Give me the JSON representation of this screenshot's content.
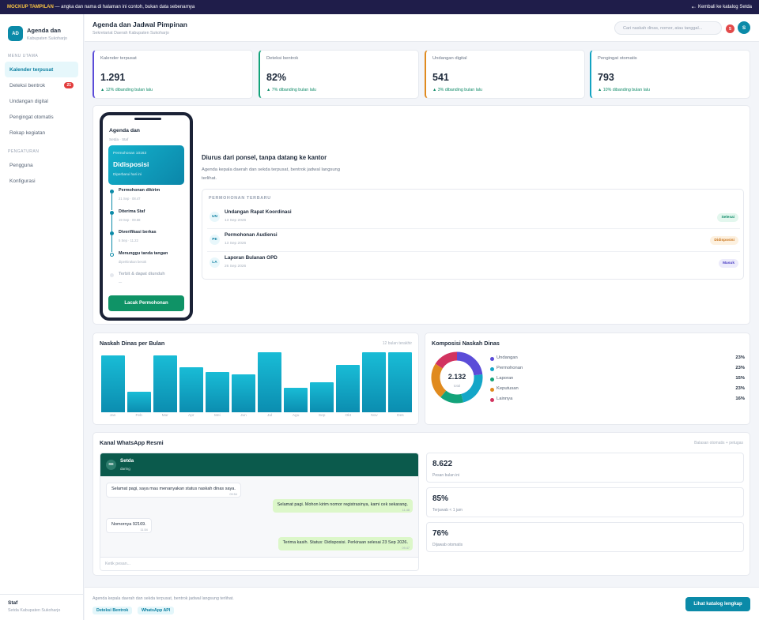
{
  "banner": {
    "tag": "MOCKUP TAMPILAN",
    "text": "— angka dan nama di halaman ini contoh, bukan data sebenarnya",
    "back_label": "Kembali ke katalog Setda",
    "back_icon": "arrow-left-icon"
  },
  "sidebar": {
    "logo": "AD",
    "title": "Agenda dan",
    "subtitle": "Kabupaten Sukoharjo",
    "section_main": "MENU UTAMA",
    "items": [
      {
        "label": "Kalender terpusat",
        "active": true
      },
      {
        "label": "Deteksi bentrok",
        "badge": "21"
      },
      {
        "label": "Undangan digital"
      },
      {
        "label": "Pengingat otomatis"
      },
      {
        "label": "Rekap kegiatan"
      }
    ],
    "section_settings": "PENGATURAN",
    "settings_items": [
      {
        "label": "Pengguna"
      },
      {
        "label": "Konfigurasi"
      }
    ],
    "user_name": "Staf",
    "user_role": "Setda Kabupaten Sukoharjo"
  },
  "header": {
    "title": "Agenda dan Jadwal Pimpinan",
    "subtitle": "Sekretariat Daerah Kabupaten Sukoharjo",
    "search_placeholder": "Cari naskah dinas, nomor, atau tanggal...",
    "notif_count": "5",
    "avatar": "S"
  },
  "stats": [
    {
      "label": "Kalender terpusat",
      "value": "1.291",
      "trend": "▲ 12% dibanding bulan lalu",
      "color": "#5b4cd8"
    },
    {
      "label": "Deteksi bentrok",
      "value": "82%",
      "trend": "▲ 7% dibanding bulan lalu",
      "color": "#13a37a"
    },
    {
      "label": "Undangan digital",
      "value": "541",
      "trend": "▲ 3% dibanding bulan lalu",
      "color": "#e08a1e"
    },
    {
      "label": "Pengingat otomatis",
      "value": "793",
      "trend": "▲ 10% dibanding bulan lalu",
      "color": "#13a3c2"
    }
  ],
  "phone": {
    "title": "Agenda dan",
    "sub": "Setda · Staf",
    "card_label": "Permohonan 10163",
    "card_status": "Didisposisi",
    "card_note": "Diperbarui hari ini",
    "steps": [
      {
        "title": "Permohonan dikirim",
        "date": "21 Sep · 08.47",
        "state": "done"
      },
      {
        "title": "Diterima Staf",
        "date": "19 Sep · 09.58",
        "state": "done"
      },
      {
        "title": "Diverifikasi berkas",
        "date": "5 Sep · 11.22",
        "state": "done"
      },
      {
        "title": "Menunggu tanda tangan",
        "date": "diperkirakan besok",
        "state": "current"
      },
      {
        "title": "Terbit & dapat diunduh",
        "date": "—",
        "state": "pending"
      }
    ],
    "button": "Lacak Permohonan"
  },
  "hero": {
    "heading": "Diurus dari ponsel, tanpa datang ke kantor",
    "text": "Agenda kepala daerah dan sekda terpusat, bentrok jadwal langsung terlihat.",
    "requests_title": "PERMOHONAN TERBARU",
    "requests": [
      {
        "icon": "UN",
        "title": "Undangan Rapat Koordinasi",
        "date": "13 Sep 2026",
        "status": "Selesai",
        "bg": "#e3f7ee",
        "fg": "#0f8a68"
      },
      {
        "icon": "PE",
        "title": "Permohonan Audiensi",
        "date": "13 Sep 2026",
        "status": "Didisposisi",
        "bg": "#fdf1e0",
        "fg": "#c9741a"
      },
      {
        "icon": "LA",
        "title": "Laporan Bulanan OPD",
        "date": "26 Sep 2026",
        "status": "Masuk",
        "bg": "#ecebfb",
        "fg": "#4b3ec4"
      }
    ]
  },
  "bar_chart": {
    "note": "12 bulan terakhir"
  },
  "pie_chart": {
    "center_value": "2.132",
    "center_label": "total"
  },
  "chart_data": [
    {
      "type": "bar",
      "title": "Naskah Dinas per Bulan",
      "categories": [
        "Jan",
        "Feb",
        "Mar",
        "Apr",
        "Mei",
        "Jun",
        "Jul",
        "Agu",
        "Sep",
        "Okt",
        "Nov",
        "Des"
      ],
      "values": [
        92,
        33,
        92,
        73,
        66,
        62,
        97,
        40,
        49,
        77,
        97,
        97
      ],
      "ylim": [
        0,
        100
      ]
    },
    {
      "type": "pie",
      "title": "Komposisi Naskah Dinas",
      "categories": [
        "Undangan",
        "Permohonan",
        "Laporan",
        "Keputusan",
        "Lainnya"
      ],
      "values": [
        23,
        23,
        15,
        23,
        16
      ],
      "labels": [
        "23%",
        "23%",
        "15%",
        "23%",
        "16%"
      ],
      "colors": [
        "#5b4cd8",
        "#14a6c8",
        "#13a37a",
        "#e08a1e",
        "#d2335f"
      ]
    }
  ],
  "whatsapp": {
    "title": "Kanal WhatsApp Resmi",
    "note": "Balasan otomatis + petugas",
    "contact_initials": "SE",
    "contact_name": "Setda",
    "contact_status": "daring",
    "messages": [
      {
        "dir": "in",
        "text": "Selamat pagi, saya mau menanyakan status naskah dinas saya.",
        "time": "09.54"
      },
      {
        "dir": "out",
        "text": "Selamat pagi. Mohon kirim nomor registrasinya, kami cek sekarang.",
        "time": "11.48"
      },
      {
        "dir": "in",
        "text": "Nomornya 92169.",
        "time": "11.54"
      },
      {
        "dir": "out",
        "text": "Terima kasih. Status: Didisposisi. Perkiraan selesai 23 Sep 2026.",
        "time": "09.47"
      }
    ],
    "input_placeholder": "Ketik pesan...",
    "kpis": [
      {
        "value": "8.622",
        "label": "Pesan bulan ini"
      },
      {
        "value": "85%",
        "label": "Terjawab < 1 jam"
      },
      {
        "value": "76%",
        "label": "Dijawab otomatis"
      }
    ]
  },
  "footer": {
    "text": "Agenda kepala daerah dan sekda terpusat, bentrok jadwal langsung terlihat.",
    "chips": [
      "Deteksi Bentrok",
      "WhatsApp API"
    ],
    "button": "Lihat katalog lengkap"
  }
}
